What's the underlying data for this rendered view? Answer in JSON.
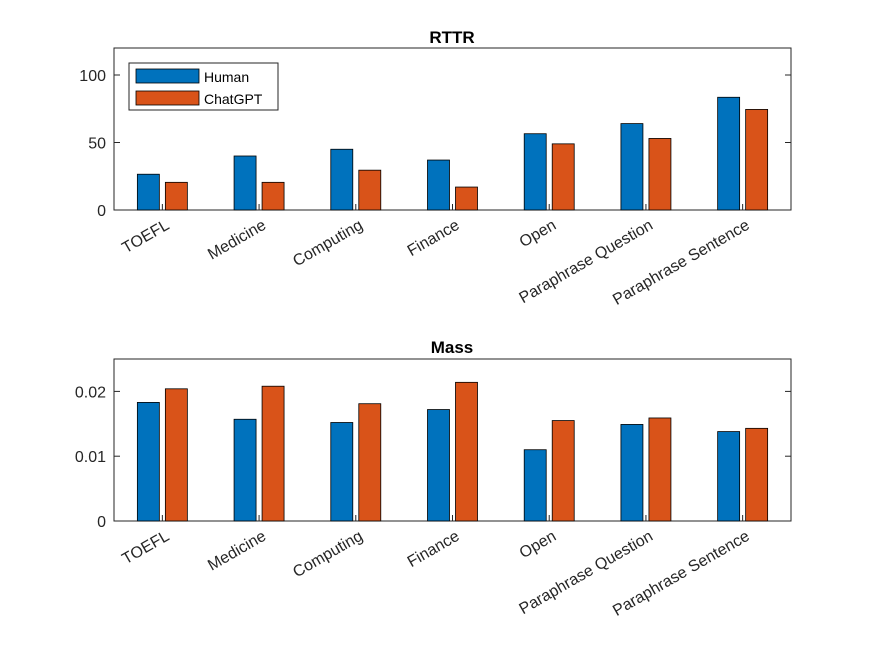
{
  "colors": {
    "human": "#0072BD",
    "chatgpt": "#D95319",
    "axis": "#262626"
  },
  "legend": {
    "entries": [
      "Human",
      "ChatGPT"
    ],
    "location": "northwest"
  },
  "chart_data": [
    {
      "type": "bar",
      "title": "RTTR",
      "categories": [
        "TOEFL",
        "Medicine",
        "Computing",
        "Finance",
        "Open",
        "Paraphrase Question",
        "Paraphrase Sentence"
      ],
      "series": [
        {
          "name": "Human",
          "values": [
            26.5,
            40,
            45,
            37,
            56.5,
            64,
            83.5
          ]
        },
        {
          "name": "ChatGPT",
          "values": [
            20.5,
            20.5,
            29.5,
            17,
            49,
            53,
            74.5
          ]
        }
      ],
      "yticks": [
        0,
        50,
        100
      ],
      "ytick_labels": [
        "0",
        "50",
        "100"
      ],
      "ylim": [
        0,
        120
      ]
    },
    {
      "type": "bar",
      "title": "Mass",
      "categories": [
        "TOEFL",
        "Medicine",
        "Computing",
        "Finance",
        "Open",
        "Paraphrase Question",
        "Paraphrase Sentence"
      ],
      "series": [
        {
          "name": "Human",
          "values": [
            0.0183,
            0.0157,
            0.0152,
            0.0172,
            0.011,
            0.0149,
            0.0138
          ]
        },
        {
          "name": "ChatGPT",
          "values": [
            0.0204,
            0.0208,
            0.0181,
            0.0214,
            0.0155,
            0.0159,
            0.0143
          ]
        }
      ],
      "yticks": [
        0,
        0.01,
        0.02
      ],
      "ytick_labels": [
        "0",
        "0.01",
        "0.02"
      ],
      "ylim": [
        0,
        0.025
      ]
    }
  ]
}
